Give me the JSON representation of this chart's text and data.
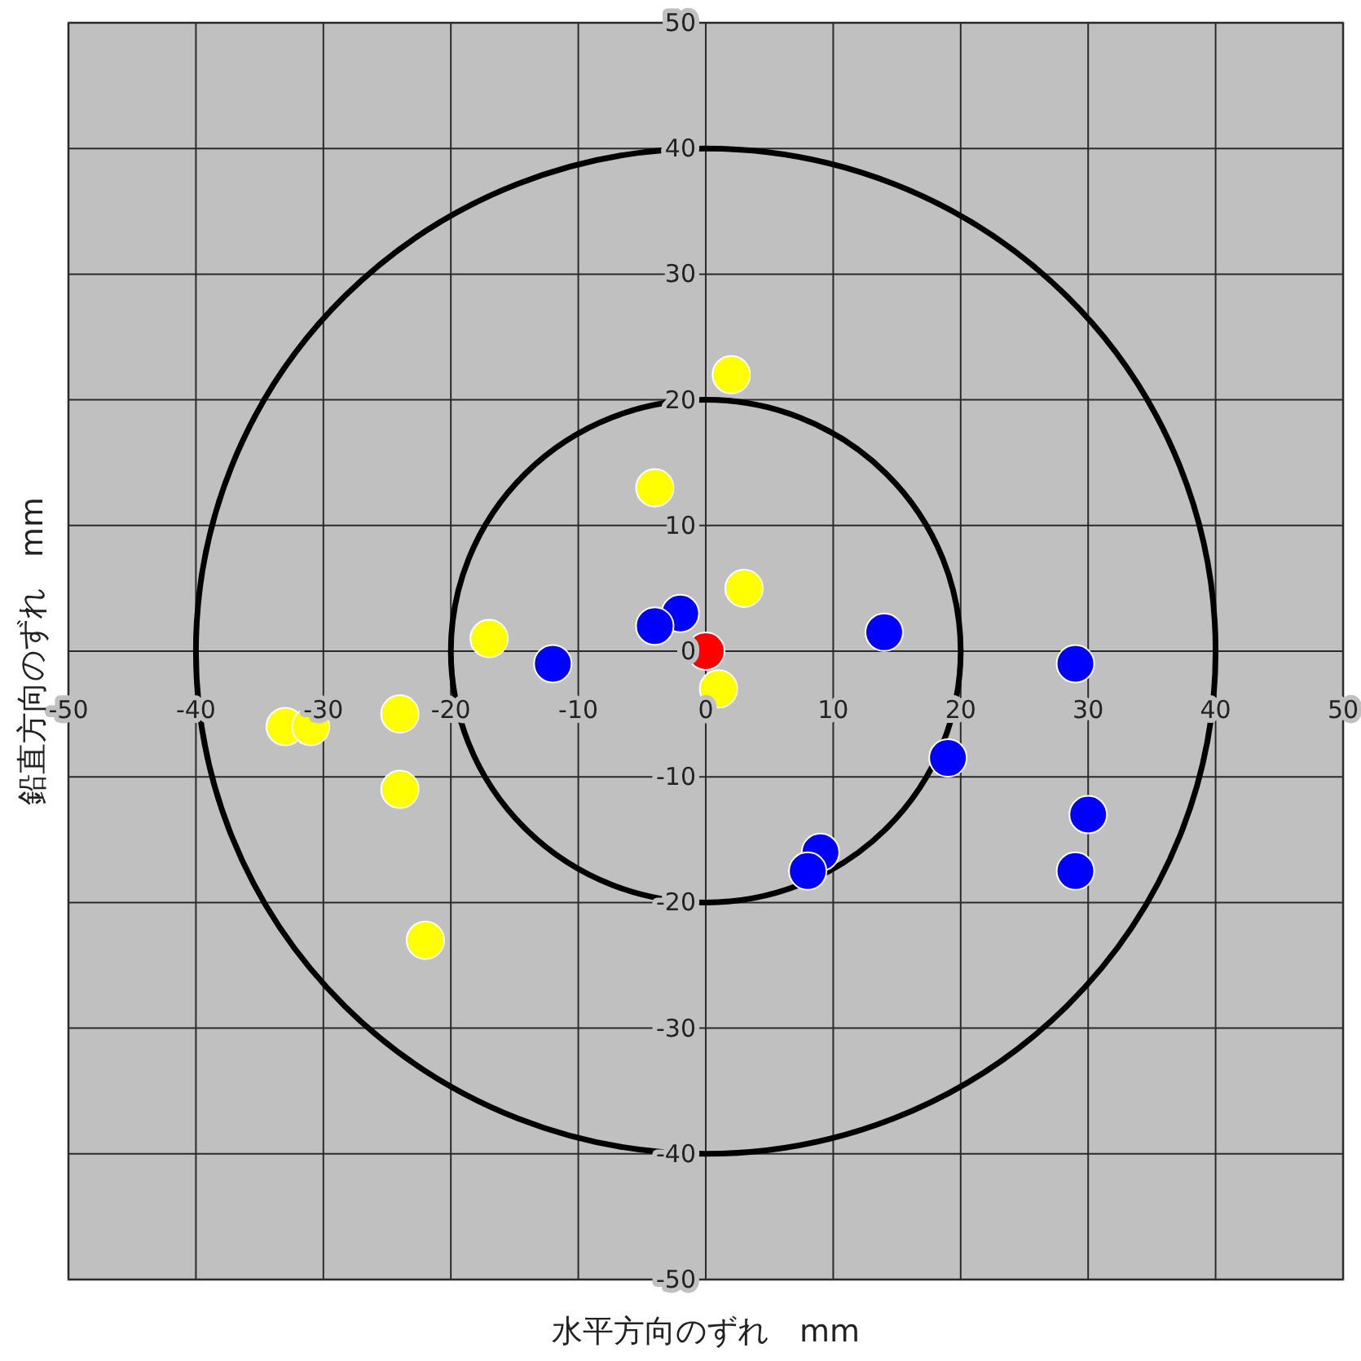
{
  "chart_data": {
    "type": "scatter",
    "xlabel": "水平方向のずれ　mm",
    "ylabel": "鉛直方向のずれ　mm",
    "xlim": [
      -50,
      50
    ],
    "ylim": [
      -50,
      50
    ],
    "xticks": [
      -50,
      -40,
      -30,
      -20,
      -10,
      0,
      10,
      20,
      30,
      40,
      50
    ],
    "yticks": [
      -50,
      -40,
      -30,
      -20,
      -10,
      0,
      10,
      20,
      30,
      40,
      50
    ],
    "grid": true,
    "series": [
      {
        "type": "scatter",
        "marker": "circle",
        "color": "#ffff00",
        "x": [
          2,
          -4,
          3,
          -17,
          1,
          -33,
          -31,
          -24,
          -24,
          -22
        ],
        "values": [
          22,
          13,
          5,
          1,
          -3,
          -6,
          -6,
          -5,
          -11,
          -23
        ]
      },
      {
        "type": "scatter",
        "marker": "circle",
        "color": "#0000ff",
        "x": [
          -2,
          -4,
          -12,
          14,
          29,
          19,
          30,
          29,
          9,
          8
        ],
        "values": [
          3,
          2,
          -1,
          1.5,
          -1,
          -8.5,
          -13,
          -17.5,
          -16,
          -17.5
        ]
      },
      {
        "type": "scatter",
        "marker": "circle",
        "color": "#ff0000",
        "x": [
          0
        ],
        "values": [
          0
        ]
      }
    ]
  }
}
